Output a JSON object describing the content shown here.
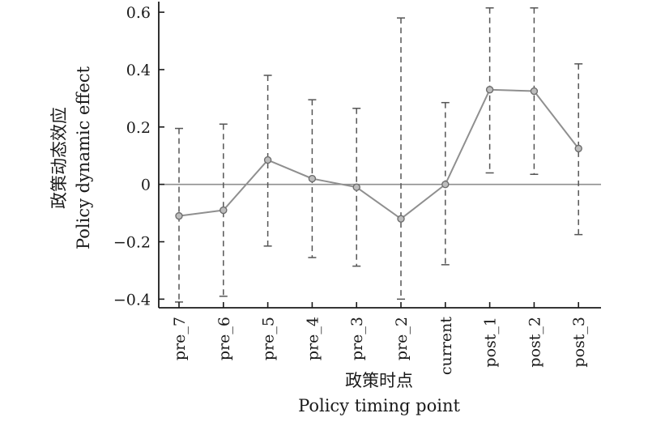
{
  "chart_data": {
    "type": "line",
    "xlabel_lines": [
      "政策时点",
      "Policy timing point"
    ],
    "ylabel_lines": [
      "政策动态效应",
      "Policy dynamic effect"
    ],
    "categories": [
      "pre_7",
      "pre_6",
      "pre_5",
      "pre_4",
      "pre_3",
      "pre_2",
      "current",
      "post_1",
      "post_2",
      "post_3"
    ],
    "values": [
      -0.11,
      -0.09,
      0.085,
      0.02,
      -0.01,
      -0.12,
      0.0,
      0.33,
      0.325,
      0.125
    ],
    "ci_lower": [
      -0.41,
      -0.39,
      -0.215,
      -0.255,
      -0.285,
      -0.4,
      -0.28,
      0.04,
      0.035,
      -0.175
    ],
    "ci_upper": [
      0.195,
      0.21,
      0.38,
      0.295,
      0.265,
      0.58,
      0.285,
      0.615,
      0.615,
      0.42
    ],
    "ylim": [
      -0.43,
      0.62
    ],
    "yticks": [
      -0.4,
      -0.2,
      0,
      0.2,
      0.4,
      0.6
    ],
    "ytick_labels": [
      "−0.4",
      "−0.2",
      "0",
      "0.2",
      "0.4",
      "0.6"
    ],
    "reference_line": 0,
    "colors": {
      "line": "#8f8f8f",
      "error_bar": "#555555",
      "reference": "#8f8f8f",
      "axis": "#1a1a1a"
    }
  }
}
